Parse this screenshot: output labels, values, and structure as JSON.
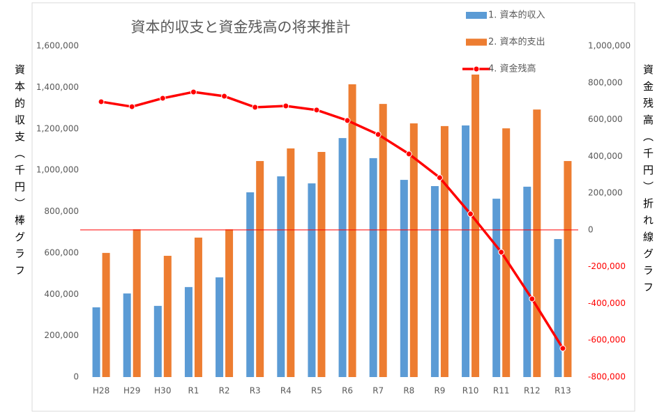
{
  "chart_data": {
    "type": "bar-line",
    "title": "資本的収支と資金残高の将来推計",
    "y_label": "資本的収支（千円）棒グラフ",
    "y2_label": "資金残高（千円）折れ線グラフ",
    "categories": [
      "H28",
      "H29",
      "H30",
      "R1",
      "R2",
      "R3",
      "R4",
      "R5",
      "R6",
      "R7",
      "R8",
      "R9",
      "R10",
      "R11",
      "R12",
      "R13"
    ],
    "series": [
      {
        "name": "1. 資本的収入",
        "type": "bar",
        "color": "#5b9bd5",
        "values": [
          337000,
          404000,
          344000,
          435000,
          482000,
          893000,
          970000,
          936000,
          1155000,
          1058000,
          953000,
          923000,
          1216000,
          862000,
          920000,
          667000
        ]
      },
      {
        "name": "2. 資本的支出",
        "type": "bar",
        "color": "#ed7d31",
        "values": [
          600000,
          714000,
          586000,
          674000,
          714000,
          1044000,
          1105000,
          1088000,
          1415000,
          1320000,
          1226000,
          1213000,
          1462000,
          1202000,
          1293000,
          1044000
        ]
      },
      {
        "name": "4. 資金残高",
        "type": "line",
        "axis": "y2",
        "color": "#ff0000",
        "values": [
          697000,
          670000,
          716000,
          750000,
          727000,
          667000,
          674000,
          652000,
          595000,
          519000,
          413000,
          284000,
          87000,
          -121000,
          -375000,
          -644000
        ]
      }
    ],
    "ylim": [
      0,
      1600000
    ],
    "yticks": [
      0,
      {
        "value": 200000,
        "label": "200,000"
      },
      {
        "value": 400000,
        "label": "400,000"
      },
      {
        "value": 600000,
        "label": "600,000"
      },
      {
        "value": 800000,
        "label": "800,000"
      },
      {
        "value": 1000000,
        "label": "1,000,000"
      },
      {
        "value": 1200000,
        "label": "1,200,000"
      },
      {
        "value": 1400000,
        "label": "1,400,000"
      },
      {
        "value": 1600000,
        "label": "1,600,000"
      }
    ],
    "y2lim": [
      -800000,
      1000000
    ],
    "y2ticks": [
      {
        "value": -800000,
        "label": "-800,000"
      },
      {
        "value": -600000,
        "label": "-600,000"
      },
      {
        "value": -400000,
        "label": "-400,000"
      },
      {
        "value": -200000,
        "label": "-200,000"
      },
      0,
      {
        "value": 200000,
        "label": "200,000"
      },
      {
        "value": 400000,
        "label": "400,000"
      },
      {
        "value": 600000,
        "label": "600,000"
      },
      {
        "value": 800000,
        "label": "800,000"
      },
      {
        "value": 1000000,
        "label": "1,000,000"
      }
    ],
    "y2_negative_color": "#ff0000",
    "y2_zero_line": true,
    "grid": false,
    "legend": "top-right"
  }
}
